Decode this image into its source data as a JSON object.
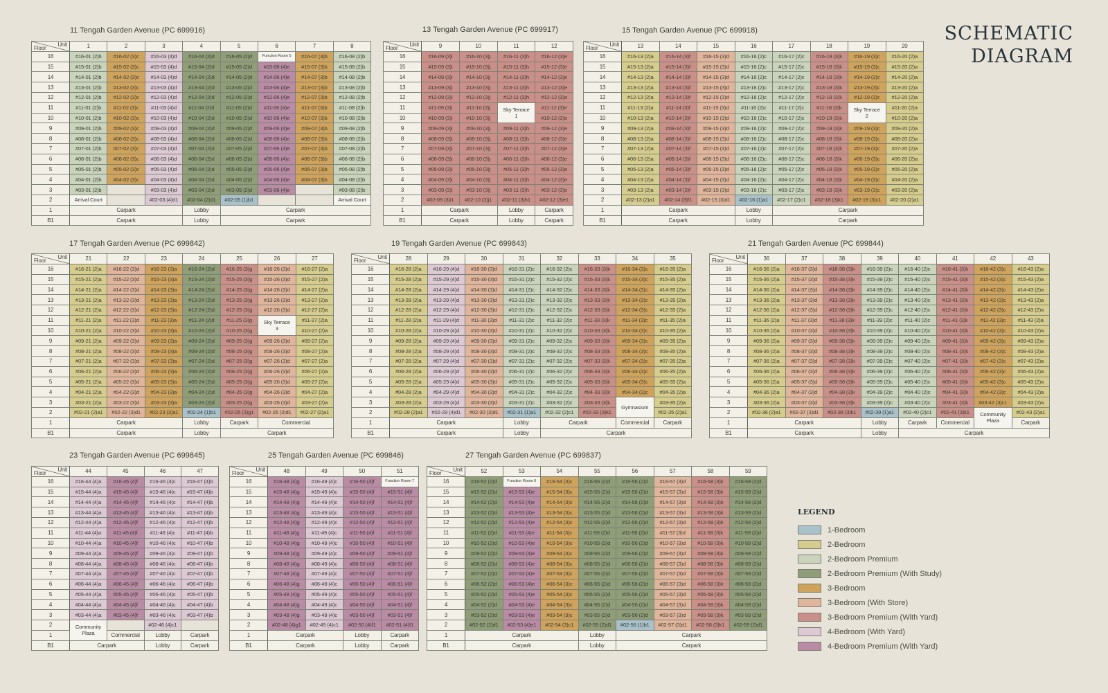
{
  "title": {
    "line1": "SCHEMATIC",
    "line2": "DIAGRAM"
  },
  "header": {
    "floor": "Floor",
    "unit": "Unit"
  },
  "floors": [
    "16",
    "15",
    "14",
    "13",
    "12",
    "11",
    "10",
    "9",
    "8",
    "7",
    "6",
    "5",
    "4",
    "3",
    "2"
  ],
  "lower_floors": [
    "1",
    "B1"
  ],
  "categories": {
    "1br": {
      "label": "1-Bedroom",
      "color": "#a8c1ca"
    },
    "2br": {
      "label": "2-Bedroom",
      "color": "#d6cc8d"
    },
    "2bp": {
      "label": "2-Bedroom Premium",
      "color": "#cad3bb"
    },
    "2bps": {
      "label": "2-Bedroom Premium (With Study)",
      "color": "#8f9d78"
    },
    "3br": {
      "label": "3-Bedroom",
      "color": "#cfa35c"
    },
    "3bs": {
      "label": "3-Bedroom (With Store)",
      "color": "#e1b59c"
    },
    "3bpy": {
      "label": "3-Bedroom Premium (With Yard)",
      "color": "#c98f88"
    },
    "4by": {
      "label": "4-Bedroom (With Yard)",
      "color": "#dcc9d4"
    },
    "4bpy": {
      "label": "4-Bedroom Premium (With Yard)",
      "color": "#b98ba4"
    }
  },
  "legend": {
    "title": "LEGEND",
    "order": [
      "1br",
      "2br",
      "2bp",
      "2bps",
      "3br",
      "3bs",
      "3bpy",
      "4by",
      "4bpy"
    ]
  },
  "blocks": [
    {
      "id": "b11",
      "title": "11 Tengah Garden Avenue (PC 699916)",
      "units": [
        {
          "no": "1",
          "type": "(2)b",
          "cat": "2bp"
        },
        {
          "no": "2",
          "type": "(3)c",
          "cat": "3br"
        },
        {
          "no": "3",
          "type": "(4)d",
          "cat": "4by"
        },
        {
          "no": "4",
          "type": "(2)d",
          "cat": "2bps"
        },
        {
          "no": "5",
          "type": "(2)d",
          "cat": "2bps"
        },
        {
          "no": "6",
          "type": "(4)e",
          "cat": "4bpy"
        },
        {
          "no": "7",
          "type": "(3)b",
          "cat": "3br"
        },
        {
          "no": "8",
          "type": "(2)b",
          "cat": "2bp"
        }
      ],
      "overrides": {
        "16-6": {
          "text": "Function Room 5",
          "cat": "none",
          "small": true
        },
        "3-2": {
          "text": "",
          "cat": "empty"
        },
        "3-7": {
          "text": "",
          "cat": "empty"
        },
        "2-1": {
          "text": "Arrival Court",
          "cat": "none"
        },
        "2-2": {
          "text": "",
          "cat": "empty"
        },
        "2-5": {
          "text": "#02-05 (1)b1",
          "cat": "1br"
        },
        "2-6": {
          "text": "",
          "cat": "empty"
        },
        "2-7": {
          "text": "",
          "cat": "empty"
        },
        "2-8": {
          "text": "Arrival Court",
          "cat": "none"
        }
      },
      "floor1": [
        {
          "text": "Carpark",
          "span": 3
        },
        {
          "text": "Lobby",
          "span": 1
        },
        {
          "text": "Carpark",
          "span": 4
        }
      ],
      "b1": [
        {
          "text": "Carpark",
          "span": 3
        },
        {
          "text": "Lobby",
          "span": 1
        },
        {
          "text": "Carpark",
          "span": 4
        }
      ]
    },
    {
      "id": "b13",
      "title": "13 Tengah Garden Avenue (PC 699917)",
      "units": [
        {
          "no": "9",
          "type": "(3)i",
          "cat": "3bpy"
        },
        {
          "no": "10",
          "type": "(3)j",
          "cat": "3bpy"
        },
        {
          "no": "11",
          "type": "(3)h",
          "cat": "3bpy"
        },
        {
          "no": "12",
          "type": "(3)e",
          "cat": "3bpy"
        }
      ],
      "overrides": {
        "11-11": {
          "text": "Sky Terrace\n1",
          "cat": "none",
          "rowspan": 2
        }
      },
      "floor1": [
        {
          "text": "Carpark",
          "span": 2
        },
        {
          "text": "Lobby",
          "span": 1
        },
        {
          "text": "Carpark",
          "span": 1
        }
      ],
      "b1": [
        {
          "text": "Carpark",
          "span": 2
        },
        {
          "text": "Lobby",
          "span": 1
        },
        {
          "text": "Carpark",
          "span": 1
        }
      ]
    },
    {
      "id": "b15",
      "title": "15 Tengah Garden Avenue (PC 699918)",
      "units": [
        {
          "no": "13",
          "type": "(2)a",
          "cat": "2br"
        },
        {
          "no": "14",
          "type": "(3)f",
          "cat": "3bpy"
        },
        {
          "no": "15",
          "type": "(3)d",
          "cat": "3bs"
        },
        {
          "no": "16",
          "type": "(2)c",
          "cat": "2bp"
        },
        {
          "no": "17",
          "type": "(2)c",
          "cat": "2bp"
        },
        {
          "no": "18",
          "type": "(3)k",
          "cat": "3bpy"
        },
        {
          "no": "19",
          "type": "(3)c",
          "cat": "3br"
        },
        {
          "no": "20",
          "type": "(2)a",
          "cat": "2br"
        }
      ],
      "overrides": {
        "11-19": {
          "text": "Sky Terrace\n2",
          "cat": "none",
          "rowspan": 2
        },
        "2-16": {
          "text": "#02-16 (1)a1",
          "cat": "1br"
        }
      },
      "floor1": [
        {
          "text": "Carpark",
          "span": 3
        },
        {
          "text": "Lobby",
          "span": 1
        },
        {
          "text": "Carpark",
          "span": 4
        }
      ],
      "b1": [
        {
          "text": "Carpark",
          "span": 3
        },
        {
          "text": "Lobby",
          "span": 1
        },
        {
          "text": "Carpark",
          "span": 4
        }
      ]
    },
    {
      "id": "b17",
      "title": "17 Tengah Garden Avenue (PC 699842)",
      "units": [
        {
          "no": "21",
          "type": "(2)a",
          "cat": "2br"
        },
        {
          "no": "22",
          "type": "(3)d",
          "cat": "3bs"
        },
        {
          "no": "23",
          "type": "(3)a",
          "cat": "3br"
        },
        {
          "no": "24",
          "type": "(2)d",
          "cat": "2bps"
        },
        {
          "no": "25",
          "type": "(3)g",
          "cat": "3bpy"
        },
        {
          "no": "26",
          "type": "(3)d",
          "cat": "3bs"
        },
        {
          "no": "27",
          "type": "(2)a",
          "cat": "2br"
        }
      ],
      "overrides": {
        "11-26": {
          "text": "Sky Terrace\n3",
          "cat": "none",
          "rowspan": 2
        },
        "2-24": {
          "text": "#02-24 (1)b1",
          "cat": "1br"
        }
      },
      "floor1": [
        {
          "text": "Carpark",
          "span": 3
        },
        {
          "text": "Lobby",
          "span": 1
        },
        {
          "text": "Carpark",
          "span": 1
        },
        {
          "text": "Commercial",
          "span": 2
        }
      ],
      "b1": [
        {
          "text": "Carpark",
          "span": 3
        },
        {
          "text": "Lobby",
          "span": 1
        },
        {
          "text": "Carpark",
          "span": 3
        }
      ]
    },
    {
      "id": "b19",
      "title": "19 Tengah Garden Avenue (PC 699843)",
      "units": [
        {
          "no": "28",
          "type": "(2)a",
          "cat": "2br"
        },
        {
          "no": "29",
          "type": "(4)d",
          "cat": "4by"
        },
        {
          "no": "30",
          "type": "(3)d",
          "cat": "3bs"
        },
        {
          "no": "31",
          "type": "(2)c",
          "cat": "2bp"
        },
        {
          "no": "32",
          "type": "(2)c",
          "cat": "2bp"
        },
        {
          "no": "33",
          "type": "(3)k",
          "cat": "3bpy"
        },
        {
          "no": "34",
          "type": "(3)c",
          "cat": "3br"
        },
        {
          "no": "35",
          "type": "(2)a",
          "cat": "2br"
        }
      ],
      "overrides": {
        "3-34": {
          "text": "Gymnasium",
          "cat": "none",
          "rowspan": 2
        },
        "2-31": {
          "text": "#02-31 (1)a1",
          "cat": "1br"
        }
      },
      "floor1": [
        {
          "text": "Carpark",
          "span": 3
        },
        {
          "text": "Lobby",
          "span": 1
        },
        {
          "text": "Carpark",
          "span": 2
        },
        {
          "text": "Commercial",
          "span": 1
        },
        {
          "text": "Carpark",
          "span": 1
        }
      ],
      "b1": [
        {
          "text": "Carpark",
          "span": 3
        },
        {
          "text": "Lobby",
          "span": 1
        },
        {
          "text": "Carpark",
          "span": 4
        }
      ]
    },
    {
      "id": "b21",
      "title": "21 Tengah Garden Avenue (PC 699844)",
      "units": [
        {
          "no": "36",
          "type": "(2)a",
          "cat": "2br"
        },
        {
          "no": "37",
          "type": "(3)d",
          "cat": "3bs"
        },
        {
          "no": "38",
          "type": "(3)k",
          "cat": "3bpy"
        },
        {
          "no": "39",
          "type": "(2)c",
          "cat": "2bp"
        },
        {
          "no": "40",
          "type": "(2)c",
          "cat": "2bp"
        },
        {
          "no": "41",
          "type": "(3)k",
          "cat": "3bpy"
        },
        {
          "no": "42",
          "type": "(3)c",
          "cat": "3br"
        },
        {
          "no": "43",
          "type": "(2)a",
          "cat": "2br"
        }
      ],
      "overrides": {
        "3-42": {
          "text": "#03-42 (3)c1",
          "cat": "3br"
        },
        "2-39": {
          "text": "#02-39 (1)a1",
          "cat": "1br"
        },
        "2-42": {
          "text": "Community\nPlaza",
          "cat": "none",
          "rowspan": 2
        }
      },
      "floor1": [
        {
          "text": "Carpark",
          "span": 3
        },
        {
          "text": "Lobby",
          "span": 1
        },
        {
          "text": "Carpark",
          "span": 1
        },
        {
          "text": "Commercial",
          "span": 1
        },
        {
          "text": "Carpark",
          "span": 1
        }
      ],
      "b1": [
        {
          "text": "Carpark",
          "span": 3
        },
        {
          "text": "Lobby",
          "span": 1
        },
        {
          "text": "Carpark",
          "span": 4
        }
      ]
    },
    {
      "id": "b23",
      "title": "23 Tengah Garden Avenue (PC 699845)",
      "units": [
        {
          "no": "44",
          "type": "(4)a",
          "cat": "4by"
        },
        {
          "no": "45",
          "type": "(4)f",
          "cat": "4bpy"
        },
        {
          "no": "46",
          "type": "(4)c",
          "cat": "4by"
        },
        {
          "no": "47",
          "type": "(4)b",
          "cat": "4by"
        }
      ],
      "overrides": {
        "2-44": {
          "text": "Community\nPlaza",
          "cat": "none",
          "rowspan": 2
        },
        "2-45": {
          "text": "",
          "cat": "empty"
        },
        "2-47": {
          "text": "",
          "cat": "empty"
        }
      },
      "floor1": [
        {
          "text": "Commercial",
          "span": 1
        },
        {
          "text": "Lobby",
          "span": 1
        },
        {
          "text": "Carpark",
          "span": 1
        }
      ],
      "b1": [
        {
          "text": "Carpark",
          "span": 2
        },
        {
          "text": "Lobby",
          "span": 1
        },
        {
          "text": "Carpark",
          "span": 1
        }
      ]
    },
    {
      "id": "b25",
      "title": "25 Tengah Garden Avenue (PC 699846)",
      "units": [
        {
          "no": "48",
          "type": "(4)g",
          "cat": "4bpy"
        },
        {
          "no": "49",
          "type": "(4)c",
          "cat": "4by"
        },
        {
          "no": "50",
          "type": "(4)f",
          "cat": "4bpy"
        },
        {
          "no": "51",
          "type": "(4)f",
          "cat": "4bpy"
        }
      ],
      "overrides": {
        "16-51": {
          "text": "Function Room 7",
          "cat": "none",
          "small": true
        }
      },
      "floor1": [
        {
          "text": "Carpark",
          "span": 2
        },
        {
          "text": "Lobby",
          "span": 1
        },
        {
          "text": "Carpark",
          "span": 1
        }
      ],
      "b1": [
        {
          "text": "Carpark",
          "span": 2
        },
        {
          "text": "Lobby",
          "span": 1
        },
        {
          "text": "Carpark",
          "span": 1
        }
      ]
    },
    {
      "id": "b27",
      "title": "27 Tengah Garden Avenue (PC 699837)",
      "units": [
        {
          "no": "52",
          "type": "(2)d",
          "cat": "2bps"
        },
        {
          "no": "53",
          "type": "(4)e",
          "cat": "4bpy"
        },
        {
          "no": "54",
          "type": "(3)c",
          "cat": "3br"
        },
        {
          "no": "55",
          "type": "(2)d",
          "cat": "2bps"
        },
        {
          "no": "56",
          "type": "(2)d",
          "cat": "2bps"
        },
        {
          "no": "57",
          "type": "(3)d",
          "cat": "3bs"
        },
        {
          "no": "58",
          "type": "(3)k",
          "cat": "3bpy"
        },
        {
          "no": "59",
          "type": "(2)d",
          "cat": "2bps"
        }
      ],
      "overrides": {
        "16-53": {
          "text": "Function Room 6",
          "cat": "none",
          "small": true
        },
        "2-56": {
          "text": "#02-56 (1)b1",
          "cat": "1br"
        }
      },
      "floor1": [
        {
          "text": "Carpark",
          "span": 3
        },
        {
          "text": "Lobby",
          "span": 1
        },
        {
          "text": "Carpark",
          "span": 4
        }
      ],
      "b1": [
        {
          "text": "Carpark",
          "span": 3
        },
        {
          "text": "Lobby",
          "span": 1
        },
        {
          "text": "Carpark",
          "span": 4
        }
      ]
    }
  ]
}
